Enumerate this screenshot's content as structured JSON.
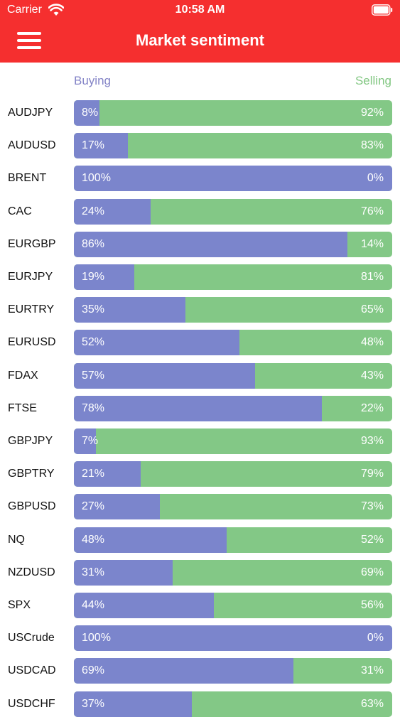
{
  "status_bar": {
    "carrier": "Carrier",
    "time": "10:58 AM"
  },
  "header": {
    "title": "Market sentiment",
    "menu_icon": "hamburger-menu-icon"
  },
  "legend": {
    "buying": "Buying",
    "selling": "Selling"
  },
  "colors": {
    "header": "#f52f2f",
    "buying": "#7b85cc",
    "selling": "#83c886"
  },
  "rows": [
    {
      "symbol": "AUDJPY",
      "buying": 8,
      "buying_label": "8%",
      "selling_label": "92%"
    },
    {
      "symbol": "AUDUSD",
      "buying": 17,
      "buying_label": "17%",
      "selling_label": "83%"
    },
    {
      "symbol": "BRENT",
      "buying": 100,
      "buying_label": "100%",
      "selling_label": "0%"
    },
    {
      "symbol": "CAC",
      "buying": 24,
      "buying_label": "24%",
      "selling_label": "76%"
    },
    {
      "symbol": "EURGBP",
      "buying": 86,
      "buying_label": "86%",
      "selling_label": "14%"
    },
    {
      "symbol": "EURJPY",
      "buying": 19,
      "buying_label": "19%",
      "selling_label": "81%"
    },
    {
      "symbol": "EURTRY",
      "buying": 35,
      "buying_label": "35%",
      "selling_label": "65%"
    },
    {
      "symbol": "EURUSD",
      "buying": 52,
      "buying_label": "52%",
      "selling_label": "48%"
    },
    {
      "symbol": "FDAX",
      "buying": 57,
      "buying_label": "57%",
      "selling_label": "43%"
    },
    {
      "symbol": "FTSE",
      "buying": 78,
      "buying_label": "78%",
      "selling_label": "22%"
    },
    {
      "symbol": "GBPJPY",
      "buying": 7,
      "buying_label": "7%",
      "selling_label": "93%"
    },
    {
      "symbol": "GBPTRY",
      "buying": 21,
      "buying_label": "21%",
      "selling_label": "79%"
    },
    {
      "symbol": "GBPUSD",
      "buying": 27,
      "buying_label": "27%",
      "selling_label": "73%"
    },
    {
      "symbol": "NQ",
      "buying": 48,
      "buying_label": "48%",
      "selling_label": "52%"
    },
    {
      "symbol": "NZDUSD",
      "buying": 31,
      "buying_label": "31%",
      "selling_label": "69%"
    },
    {
      "symbol": "SPX",
      "buying": 44,
      "buying_label": "44%",
      "selling_label": "56%"
    },
    {
      "symbol": "USCrude",
      "buying": 100,
      "buying_label": "100%",
      "selling_label": "0%"
    },
    {
      "symbol": "USDCAD",
      "buying": 69,
      "buying_label": "69%",
      "selling_label": "31%"
    },
    {
      "symbol": "USDCHF",
      "buying": 37,
      "buying_label": "37%",
      "selling_label": "63%"
    }
  ]
}
